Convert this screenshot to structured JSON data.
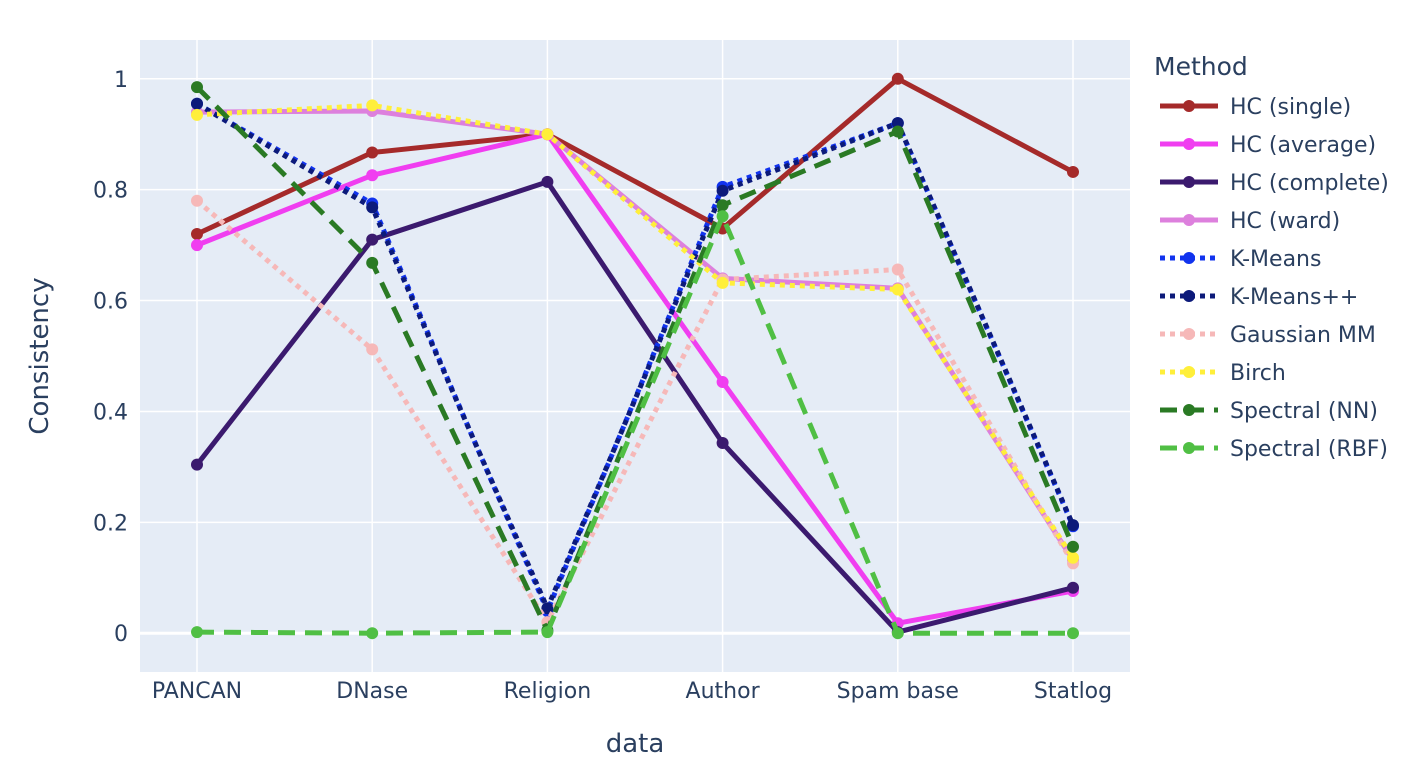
{
  "chart_data": {
    "type": "line",
    "xlabel": "data",
    "ylabel": "Consistency",
    "legend_title": "Method",
    "legend_position": "right",
    "grid": true,
    "ylim": [
      -0.07,
      1.07
    ],
    "y_ticks": [
      0,
      0.2,
      0.4,
      0.6,
      0.8,
      1
    ],
    "y_tick_labels": [
      "0",
      "0.2",
      "0.4",
      "0.6",
      "0.8",
      "1"
    ],
    "categories": [
      "PANCAN",
      "DNase",
      "Religion",
      "Author",
      "Spam base",
      "Statlog"
    ],
    "series": [
      {
        "name": "HC (single)",
        "color": "#a52a2a",
        "dash": "solid",
        "values": [
          0.72,
          0.867,
          0.9,
          0.73,
          1.0,
          0.832
        ]
      },
      {
        "name": "HC (average)",
        "color": "#f03ef0",
        "dash": "solid",
        "values": [
          0.7,
          0.826,
          0.9,
          0.453,
          0.018,
          0.076
        ]
      },
      {
        "name": "HC (complete)",
        "color": "#3b1a6e",
        "dash": "solid",
        "values": [
          0.304,
          0.71,
          0.814,
          0.343,
          0.002,
          0.082
        ]
      },
      {
        "name": "HC (ward)",
        "color": "#dd80dd",
        "dash": "solid",
        "values": [
          0.94,
          0.942,
          0.9,
          0.64,
          0.622,
          0.132
        ]
      },
      {
        "name": "K-Means",
        "color": "#1133ee",
        "dash": "dot",
        "values": [
          0.955,
          0.775,
          0.04,
          0.805,
          0.92,
          0.193
        ]
      },
      {
        "name": "K-Means++",
        "color": "#0c1a7a",
        "dash": "dot",
        "values": [
          0.955,
          0.768,
          0.045,
          0.798,
          0.92,
          0.195
        ]
      },
      {
        "name": "Gaussian MM",
        "color": "#f6b8b8",
        "dash": "dot",
        "values": [
          0.78,
          0.512,
          0.02,
          0.638,
          0.656,
          0.126
        ]
      },
      {
        "name": "Birch",
        "color": "#ffef3a",
        "dash": "dot",
        "values": [
          0.935,
          0.952,
          0.9,
          0.632,
          0.62,
          0.136
        ]
      },
      {
        "name": "Spectral (NN)",
        "color": "#2a7a24",
        "dash": "dash",
        "values": [
          0.985,
          0.668,
          0.005,
          0.772,
          0.905,
          0.156
        ]
      },
      {
        "name": "Spectral (RBF)",
        "color": "#50bf44",
        "dash": "dash",
        "values": [
          0.002,
          0.0,
          0.002,
          0.752,
          0.0,
          0.0
        ]
      }
    ]
  }
}
